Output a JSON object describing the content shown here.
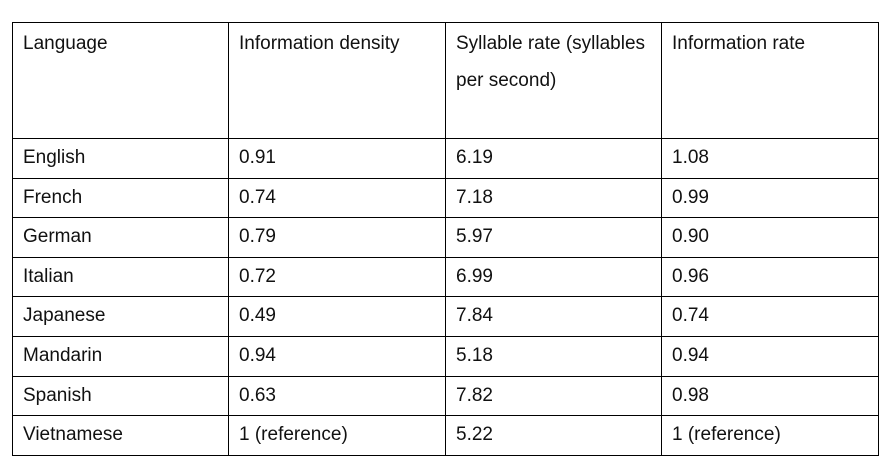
{
  "table": {
    "headers": [
      "Language",
      "Information density",
      "Syllable rate (syllables per second)",
      "Information rate"
    ],
    "rows": [
      [
        "English",
        "0.91",
        "6.19",
        "1.08"
      ],
      [
        "French",
        "0.74",
        "7.18",
        "0.99"
      ],
      [
        "German",
        "0.79",
        "5.97",
        "0.90"
      ],
      [
        "Italian",
        "0.72",
        "6.99",
        "0.96"
      ],
      [
        "Japanese",
        "0.49",
        "7.84",
        "0.74"
      ],
      [
        "Mandarin",
        "0.94",
        "5.18",
        "0.94"
      ],
      [
        "Spanish",
        "0.63",
        "7.82",
        "0.98"
      ],
      [
        "Vietnamese",
        "1 (reference)",
        "5.22",
        "1 (reference)"
      ]
    ]
  }
}
